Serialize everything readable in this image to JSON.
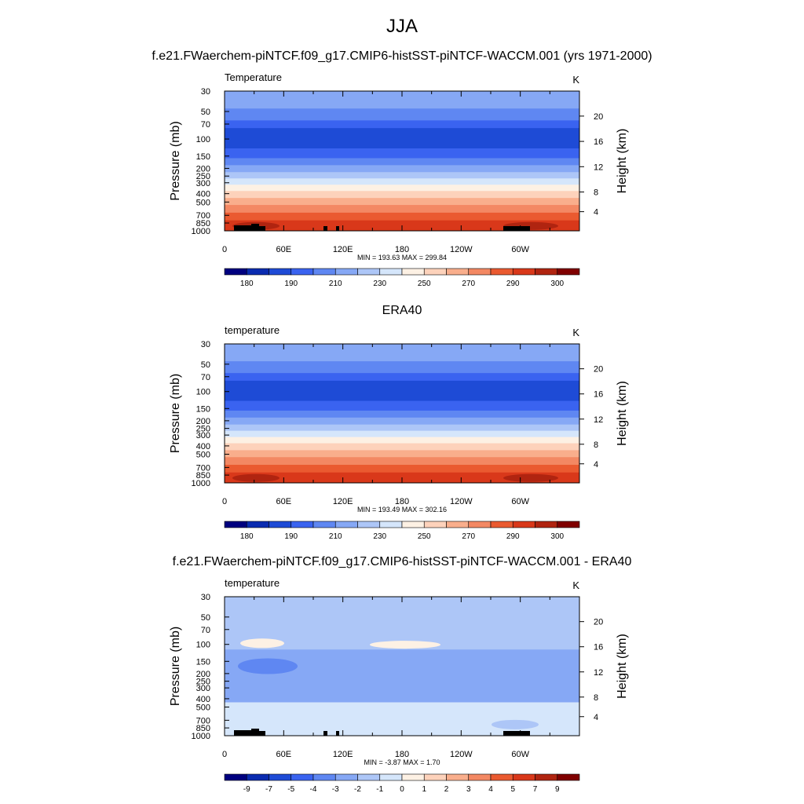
{
  "title": "JJA",
  "chart_data": [
    {
      "type": "heatmap",
      "title": "f.e21.FWaerchem-piNTCF.f09_g17.CMIP6-histSST-piNTCF-WACCM.001 (yrs 1971-2000)",
      "field_label": "Temperature",
      "units": "K",
      "ylabel": "Pressure (mb)",
      "ylabel_right": "Height (km)",
      "x_ticks": [
        "0",
        "60E",
        "120E",
        "180",
        "120W",
        "60W"
      ],
      "y_ticks": [
        "30",
        "50",
        "70",
        "100",
        "150",
        "200",
        "250",
        "300",
        "400",
        "500",
        "700",
        "850",
        "1000"
      ],
      "height_ticks": [
        "20",
        "16",
        "12",
        "8",
        "4"
      ],
      "stats": "MIN = 193.63  MAX = 299.84",
      "colorbar_labels": [
        "180",
        "190",
        "210",
        "230",
        "250",
        "270",
        "290",
        "300"
      ],
      "colorbar_colors": [
        "#00007f",
        "#0a2bb0",
        "#1e4bd6",
        "#3a63f0",
        "#5f87f2",
        "#86a8f5",
        "#adc6f7",
        "#d5e6fb",
        "#fdf1e4",
        "#fdd2bb",
        "#f9ae8c",
        "#f38863",
        "#ea5a30",
        "#d9381a",
        "#b02410",
        "#800000"
      ]
    },
    {
      "type": "heatmap",
      "title": "ERA40",
      "field_label": "temperature",
      "units": "K",
      "ylabel": "Pressure (mb)",
      "ylabel_right": "Height (km)",
      "x_ticks": [
        "0",
        "60E",
        "120E",
        "180",
        "120W",
        "60W"
      ],
      "y_ticks": [
        "30",
        "50",
        "70",
        "100",
        "150",
        "200",
        "250",
        "300",
        "400",
        "500",
        "700",
        "850",
        "1000"
      ],
      "height_ticks": [
        "20",
        "16",
        "12",
        "8",
        "4"
      ],
      "stats": "MIN = 193.49  MAX = 302.16",
      "colorbar_labels": [
        "180",
        "190",
        "210",
        "230",
        "250",
        "270",
        "290",
        "300"
      ],
      "colorbar_colors": [
        "#00007f",
        "#0a2bb0",
        "#1e4bd6",
        "#3a63f0",
        "#5f87f2",
        "#86a8f5",
        "#adc6f7",
        "#d5e6fb",
        "#fdf1e4",
        "#fdd2bb",
        "#f9ae8c",
        "#f38863",
        "#ea5a30",
        "#d9381a",
        "#b02410",
        "#800000"
      ]
    },
    {
      "type": "heatmap",
      "title": "f.e21.FWaerchem-piNTCF.f09_g17.CMIP6-histSST-piNTCF-WACCM.001 - ERA40",
      "field_label": "temperature",
      "units": "K",
      "ylabel": "Pressure (mb)",
      "ylabel_right": "Height (km)",
      "x_ticks": [
        "0",
        "60E",
        "120E",
        "180",
        "120W",
        "60W"
      ],
      "y_ticks": [
        "30",
        "50",
        "70",
        "100",
        "150",
        "200",
        "250",
        "300",
        "400",
        "500",
        "700",
        "850",
        "1000"
      ],
      "height_ticks": [
        "20",
        "16",
        "12",
        "8",
        "4"
      ],
      "stats": "MIN =  -3.87  MAX =   1.70",
      "colorbar_labels": [
        "-9",
        "-7",
        "-5",
        "-4",
        "-3",
        "-2",
        "-1",
        "0",
        "1",
        "2",
        "3",
        "4",
        "5",
        "7",
        "9"
      ],
      "colorbar_colors": [
        "#00007f",
        "#0a2bb0",
        "#1e4bd6",
        "#3a63f0",
        "#5f87f2",
        "#86a8f5",
        "#adc6f7",
        "#d5e6fb",
        "#fdf1e4",
        "#fdd2bb",
        "#f9ae8c",
        "#f38863",
        "#ea5a30",
        "#d9381a",
        "#b02410",
        "#800000"
      ]
    }
  ]
}
